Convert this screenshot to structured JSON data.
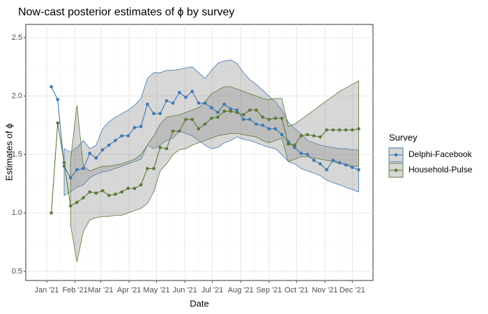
{
  "chart_data": {
    "type": "line",
    "title": "Now-cast posterior estimates of ϕ by survey",
    "xlabel": "Date",
    "ylabel": "Estimates of ϕ",
    "legend_title": "Survey",
    "legend": "right",
    "grid": true,
    "x": [
      5,
      12,
      19,
      26,
      33,
      40,
      47,
      54,
      61,
      68,
      75,
      82,
      89,
      96,
      103,
      110,
      117,
      124,
      131,
      138,
      145,
      152,
      159,
      166,
      173,
      180,
      187,
      194,
      201,
      208,
      215,
      222,
      229,
      236,
      243,
      250,
      257,
      264,
      271,
      278,
      285,
      292,
      299,
      306,
      313,
      320,
      327,
      334,
      341
    ],
    "xlim": [
      -22.9,
      356.6
    ],
    "xticks": [
      {
        "value": 0,
        "label": "Jan '21"
      },
      {
        "value": 31,
        "label": "Feb '21"
      },
      {
        "value": 59,
        "label": "Mar '21"
      },
      {
        "value": 90,
        "label": "Apr '21"
      },
      {
        "value": 120,
        "label": "May '21"
      },
      {
        "value": 151,
        "label": "Jun '21"
      },
      {
        "value": 181,
        "label": "Jul '21"
      },
      {
        "value": 212,
        "label": "Aug '21"
      },
      {
        "value": 243,
        "label": "Sep '21"
      },
      {
        "value": 273,
        "label": "Oct '21"
      },
      {
        "value": 304,
        "label": "Nov '21"
      },
      {
        "value": 334,
        "label": "Dec '21"
      }
    ],
    "ylim": [
      0.422,
      2.613
    ],
    "yticks": [
      0.5,
      {
        "value": 1,
        "label": "1.0"
      },
      1.5,
      {
        "value": 2,
        "label": "2.0"
      },
      2.5
    ],
    "series": [
      {
        "name": "Delphi-Facebook",
        "color": "#3a78b5",
        "values": [
          2.08,
          1.97,
          1.4,
          1.3,
          1.37,
          1.38,
          1.51,
          1.47,
          1.54,
          1.58,
          1.62,
          1.66,
          1.66,
          1.73,
          1.74,
          1.93,
          1.85,
          1.85,
          1.96,
          1.94,
          2.03,
          1.99,
          2.04,
          1.94,
          1.94,
          1.9,
          1.86,
          1.93,
          1.89,
          1.88,
          1.8,
          1.8,
          1.76,
          1.75,
          1.72,
          1.72,
          1.67,
          1.61,
          1.56,
          1.51,
          1.5,
          1.45,
          1.42,
          1.37,
          1.45,
          1.43,
          1.41,
          1.39,
          1.37
        ],
        "upper": [
          null,
          null,
          1.55,
          1.52,
          1.56,
          1.62,
          1.55,
          1.58,
          1.72,
          1.78,
          1.82,
          1.85,
          1.88,
          1.92,
          1.98,
          2.15,
          2.2,
          2.2,
          2.22,
          2.22,
          2.23,
          2.24,
          2.25,
          2.2,
          2.15,
          2.22,
          2.28,
          2.3,
          2.31,
          2.28,
          2.2,
          2.14,
          2.1,
          2.05,
          2.0,
          1.95,
          1.88,
          1.78,
          1.72,
          1.68,
          1.62,
          1.6,
          1.58,
          1.57,
          1.56,
          1.55,
          1.55,
          1.54,
          1.54
        ],
        "lower": [
          null,
          null,
          1.15,
          1.18,
          1.22,
          1.24,
          1.3,
          1.33,
          1.35,
          1.36,
          1.38,
          1.4,
          1.42,
          1.44,
          1.46,
          1.58,
          1.55,
          1.58,
          1.62,
          1.64,
          1.7,
          1.68,
          1.66,
          1.62,
          1.58,
          1.55,
          1.56,
          1.6,
          1.62,
          1.65,
          1.63,
          1.62,
          1.6,
          1.58,
          1.56,
          1.55,
          1.5,
          1.44,
          1.42,
          1.38,
          1.36,
          1.34,
          1.32,
          1.28,
          1.26,
          1.24,
          1.22,
          1.2,
          1.18
        ]
      },
      {
        "name": "Household-Pulse",
        "color": "#5a7a35",
        "values": [
          1.0,
          1.77,
          1.43,
          1.06,
          1.09,
          1.13,
          1.18,
          1.17,
          1.19,
          1.15,
          1.16,
          1.18,
          1.21,
          1.21,
          1.24,
          1.38,
          1.38,
          1.56,
          1.55,
          1.7,
          1.7,
          1.8,
          1.8,
          1.72,
          1.76,
          1.81,
          1.82,
          1.87,
          1.87,
          1.86,
          1.84,
          1.88,
          1.88,
          1.82,
          1.8,
          1.81,
          1.81,
          1.59,
          1.58,
          1.66,
          1.67,
          1.66,
          1.65,
          1.71,
          1.71,
          1.71,
          1.71,
          1.71,
          1.72
        ],
        "upper": [
          null,
          null,
          null,
          1.45,
          1.92,
          1.4,
          1.36,
          1.38,
          1.4,
          1.4,
          1.41,
          1.42,
          1.44,
          1.46,
          1.5,
          1.58,
          1.66,
          1.76,
          1.82,
          1.83,
          1.84,
          1.86,
          1.88,
          1.9,
          1.95,
          2.02,
          2.05,
          2.08,
          2.08,
          2.06,
          2.04,
          2.02,
          2.0,
          1.98,
          1.97,
          1.98,
          1.98,
          1.74,
          1.76,
          1.8,
          1.84,
          1.88,
          1.92,
          1.96,
          2.0,
          2.04,
          2.07,
          2.1,
          2.13
        ],
        "lower": [
          null,
          null,
          null,
          0.9,
          0.58,
          0.84,
          0.94,
          0.96,
          0.97,
          0.97,
          0.98,
          0.98,
          1.0,
          1.02,
          1.04,
          1.08,
          1.18,
          1.36,
          1.42,
          1.5,
          1.54,
          1.55,
          1.58,
          1.6,
          1.62,
          1.64,
          1.66,
          1.67,
          1.68,
          1.68,
          1.67,
          1.66,
          1.65,
          1.62,
          1.6,
          1.62,
          1.64,
          1.44,
          1.46,
          1.48,
          1.48,
          1.47,
          1.46,
          1.45,
          1.44,
          1.42,
          1.42,
          1.4,
          1.4
        ]
      }
    ]
  }
}
